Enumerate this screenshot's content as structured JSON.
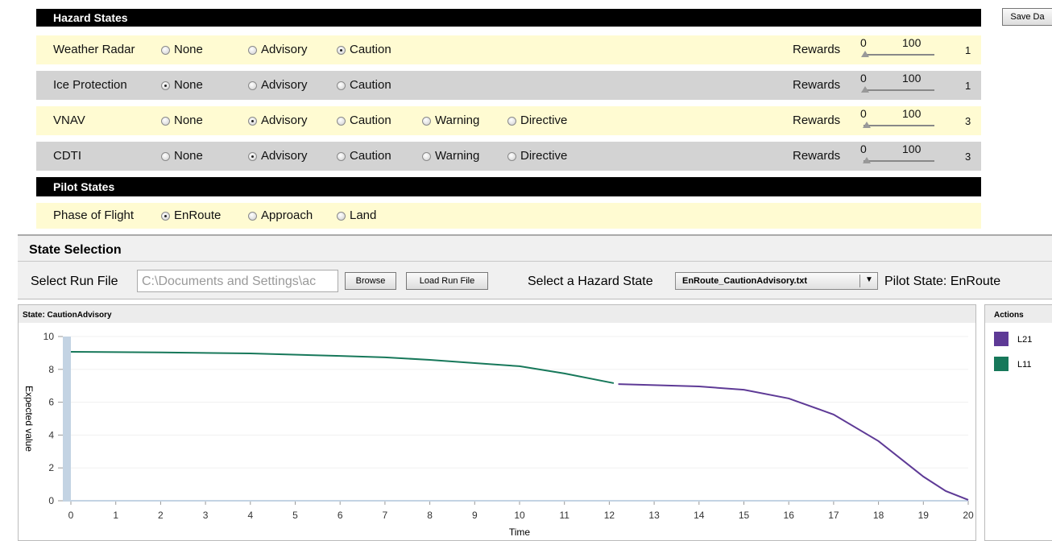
{
  "save_button": "Save Da",
  "hazard_states": {
    "title": "Hazard States",
    "rewards_label": "Rewards",
    "rows": [
      {
        "label": "Weather Radar",
        "options": [
          "None",
          "Advisory",
          "Caution"
        ],
        "selected": 2,
        "slider_min": 0,
        "slider_max": 100,
        "value": 1
      },
      {
        "label": "Ice Protection",
        "options": [
          "None",
          "Advisory",
          "Caution"
        ],
        "selected": 0,
        "slider_min": 0,
        "slider_max": 100,
        "value": 1
      },
      {
        "label": "VNAV",
        "options": [
          "None",
          "Advisory",
          "Caution",
          "Warning",
          "Directive"
        ],
        "selected": 1,
        "slider_min": 0,
        "slider_max": 100,
        "value": 3
      },
      {
        "label": "CDTI",
        "options": [
          "None",
          "Advisory",
          "Caution",
          "Warning",
          "Directive"
        ],
        "selected": 1,
        "slider_min": 0,
        "slider_max": 100,
        "value": 3
      }
    ]
  },
  "pilot_states": {
    "title": "Pilot States",
    "rows": [
      {
        "label": "Phase of Flight",
        "options": [
          "EnRoute",
          "Approach",
          "Land"
        ],
        "selected": 0
      }
    ]
  },
  "state_selection": {
    "title": "State Selection",
    "run_file_label": "Select Run File",
    "run_file_path": "C:\\Documents and Settings\\ac",
    "browse_button": "Browse",
    "load_button": "Load Run File",
    "hazard_label": "Select a Hazard State",
    "hazard_file": "EnRoute_CautionAdvisory.txt",
    "pilot_state": "Pilot State: EnRoute"
  },
  "chart_data": {
    "type": "line",
    "title": "State: CautionAdvisory",
    "xlabel": "Time",
    "ylabel": "Expected value",
    "legend_title": "Actions",
    "xlim": [
      0,
      20
    ],
    "ylim": [
      0,
      10
    ],
    "xticks": [
      0,
      1,
      2,
      3,
      4,
      5,
      6,
      7,
      8,
      9,
      10,
      11,
      12,
      13,
      14,
      15,
      16,
      17,
      18,
      19,
      20
    ],
    "yticks": [
      0,
      2,
      4,
      6,
      8,
      10
    ],
    "grid": true,
    "series": [
      {
        "name": "L21",
        "color": "#5e3a96",
        "x": [
          12.2,
          13,
          14,
          15,
          16,
          17,
          18,
          19,
          19.5,
          20
        ],
        "values": [
          7.1,
          7.04,
          6.96,
          6.76,
          6.23,
          5.25,
          3.63,
          1.47,
          0.59,
          0.05
        ]
      },
      {
        "name": "L11",
        "color": "#17785a",
        "x": [
          0,
          2,
          4,
          6,
          7,
          8,
          9,
          10,
          11,
          12.1
        ],
        "values": [
          9.07,
          9.03,
          8.97,
          8.82,
          8.73,
          8.58,
          8.38,
          8.19,
          7.75,
          7.16
        ]
      }
    ]
  }
}
